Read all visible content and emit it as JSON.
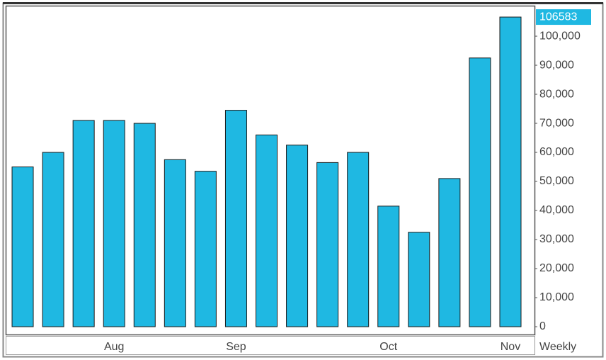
{
  "chart_data": {
    "type": "bar",
    "categories": [
      null,
      null,
      null,
      "Aug",
      null,
      null,
      null,
      "Sep",
      null,
      null,
      null,
      null,
      "Oct",
      null,
      null,
      null,
      "Nov"
    ],
    "values": [
      55000,
      60000,
      71000,
      71000,
      70000,
      57500,
      53500,
      74500,
      66000,
      62500,
      56500,
      60000,
      41500,
      32500,
      51000,
      92500,
      106583
    ],
    "color": "#1fb8e2",
    "ylim": [
      0,
      110500
    ],
    "yticks": [
      0,
      {
        "value": 10000,
        "label": "10,000"
      },
      {
        "value": 20000,
        "label": "20,000"
      },
      {
        "value": 30000,
        "label": "30,000"
      },
      {
        "value": 40000,
        "label": "40,000"
      },
      {
        "value": 50000,
        "label": "50,000"
      },
      {
        "value": 60000,
        "label": "60,000"
      },
      {
        "value": 70000,
        "label": "70,000"
      },
      {
        "value": 80000,
        "label": "80,000"
      },
      {
        "value": 90000,
        "label": "90,000"
      },
      {
        "value": 100000,
        "label": "100,000"
      }
    ],
    "period_label": "Weekly",
    "last_value_highlight": true,
    "grid": false
  }
}
